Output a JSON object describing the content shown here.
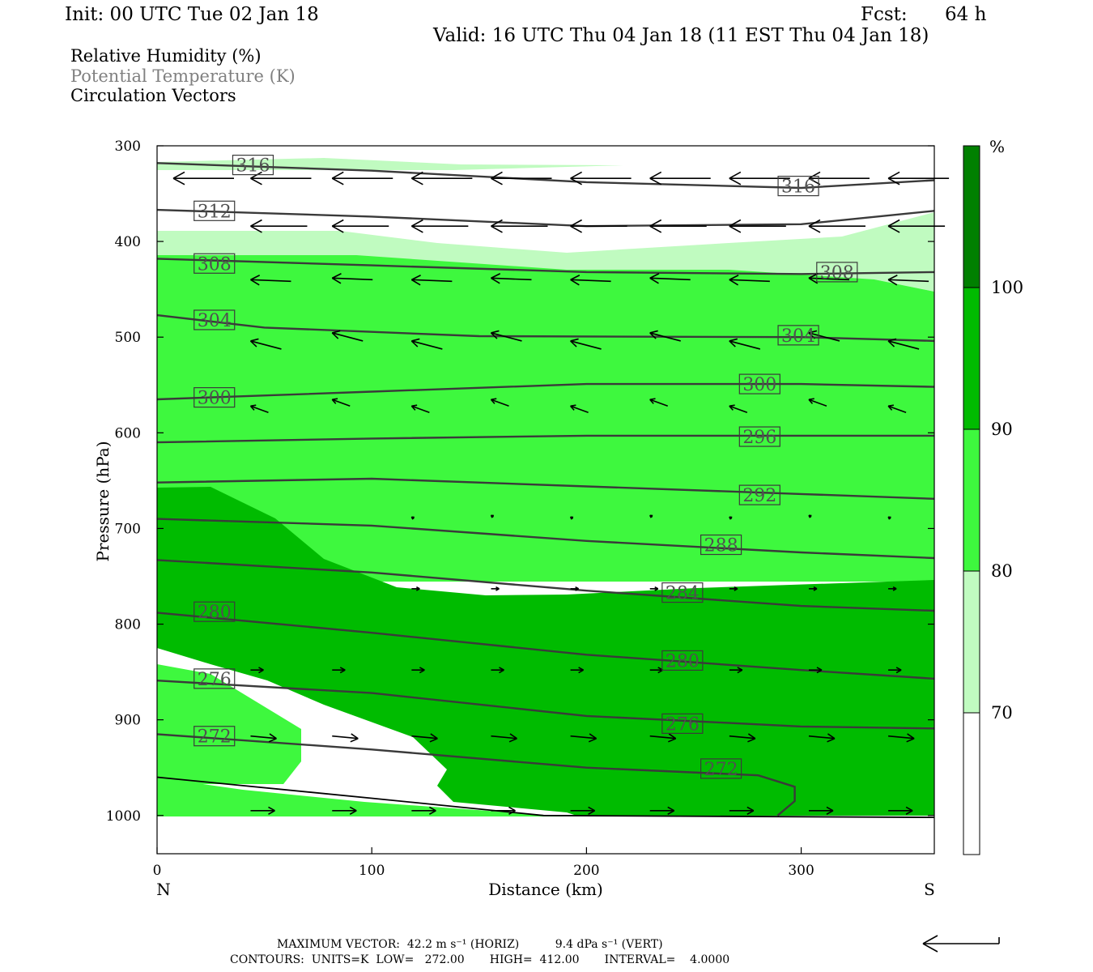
{
  "header": {
    "init": "Init: 00 UTC Tue 02 Jan 18",
    "fcst_label": "Fcst:",
    "fcst_value": "64 h",
    "valid": "Valid: 16 UTC Thu 04 Jan 18 (11 EST Thu 04 Jan 18)"
  },
  "legend_lines": {
    "rh": "Relative Humidity (%)",
    "theta": "Potential Temperature (K)",
    "vectors": "Circulation Vectors"
  },
  "colors": {
    "rh_70_80": "#c0fbc0",
    "rh_80_90": "#3ef83e",
    "rh_90_100": "#00bb00",
    "rh_100": "#008000",
    "contour": "#3a3a3a",
    "theta_text": "#808080"
  },
  "colorbar": {
    "unit": "%",
    "labels": [
      "70",
      "80",
      "90",
      "100"
    ]
  },
  "footer": {
    "line1": "MAXIMUM VECTOR:  42.2 m s⁻¹ (HORIZ)          9.4 dPa s⁻¹ (VERT)",
    "line2": "CONTOURS:  UNITS=K  LOW=   272.00       HIGH=  412.00       INTERVAL=    4.0000"
  },
  "chart_data": {
    "type": "cross-section",
    "xlabel": "Distance (km)",
    "ylabel": "Pressure (hPa)",
    "x_ticks": [
      0,
      100,
      200,
      300
    ],
    "y_ticks": [
      300,
      400,
      500,
      600,
      700,
      800,
      900,
      1000
    ],
    "xlim": [
      0,
      362
    ],
    "ylim": [
      300,
      1040
    ],
    "x_end_labels": {
      "left": "N",
      "right": "S"
    },
    "rh_fill_levels": [
      70,
      80,
      90,
      100
    ],
    "theta_contours": [
      {
        "label": "316",
        "points": [
          [
            0,
            318
          ],
          [
            100,
            326
          ],
          [
            200,
            338
          ],
          [
            300,
            344
          ],
          [
            362,
            336
          ]
        ],
        "label_at": [
          [
            36,
            320
          ],
          [
            290,
            342
          ]
        ]
      },
      {
        "label": "312",
        "points": [
          [
            0,
            367
          ],
          [
            100,
            374
          ],
          [
            200,
            384
          ],
          [
            300,
            382
          ],
          [
            362,
            368
          ]
        ],
        "label_at": [
          [
            18,
            368
          ]
        ]
      },
      {
        "label": "308",
        "points": [
          [
            0,
            418
          ],
          [
            100,
            425
          ],
          [
            200,
            432
          ],
          [
            300,
            434
          ],
          [
            362,
            432
          ]
        ],
        "label_at": [
          [
            18,
            423
          ],
          [
            308,
            432
          ]
        ]
      },
      {
        "label": "304",
        "points": [
          [
            0,
            477
          ],
          [
            50,
            490
          ],
          [
            150,
            499
          ],
          [
            300,
            500
          ],
          [
            362,
            504
          ]
        ],
        "label_at": [
          [
            18,
            482
          ],
          [
            290,
            498
          ]
        ]
      },
      {
        "label": "300",
        "points": [
          [
            0,
            565
          ],
          [
            100,
            557
          ],
          [
            200,
            549
          ],
          [
            300,
            549
          ],
          [
            362,
            552
          ]
        ],
        "label_at": [
          [
            18,
            563
          ],
          [
            272,
            549
          ]
        ]
      },
      {
        "label": "296",
        "points": [
          [
            0,
            610
          ],
          [
            100,
            606
          ],
          [
            200,
            603
          ],
          [
            300,
            603
          ],
          [
            362,
            603
          ]
        ],
        "label_at": [
          [
            272,
            604
          ]
        ]
      },
      {
        "label": "292",
        "points": [
          [
            0,
            652
          ],
          [
            100,
            648
          ],
          [
            200,
            656
          ],
          [
            300,
            664
          ],
          [
            362,
            669
          ]
        ],
        "label_at": [
          [
            272,
            665
          ]
        ]
      },
      {
        "label": "288",
        "points": [
          [
            0,
            690
          ],
          [
            100,
            697
          ],
          [
            200,
            713
          ],
          [
            300,
            725
          ],
          [
            362,
            731
          ]
        ],
        "label_at": [
          [
            254,
            717
          ]
        ]
      },
      {
        "label": "284",
        "points": [
          [
            0,
            733
          ],
          [
            100,
            746
          ],
          [
            200,
            765
          ],
          [
            300,
            781
          ],
          [
            362,
            786
          ]
        ],
        "label_at": [
          [
            236,
            767
          ]
        ]
      },
      {
        "label": "280",
        "points": [
          [
            0,
            788
          ],
          [
            100,
            809
          ],
          [
            200,
            832
          ],
          [
            300,
            848
          ],
          [
            362,
            857
          ]
        ],
        "label_at": [
          [
            18,
            787
          ],
          [
            236,
            838
          ]
        ]
      },
      {
        "label": "276",
        "points": [
          [
            0,
            859
          ],
          [
            100,
            872
          ],
          [
            200,
            896
          ],
          [
            300,
            907
          ],
          [
            362,
            909
          ]
        ],
        "label_at": [
          [
            18,
            857
          ],
          [
            236,
            904
          ]
        ]
      },
      {
        "label": "272",
        "points": [
          [
            0,
            915
          ],
          [
            100,
            931
          ],
          [
            200,
            950
          ],
          [
            280,
            958
          ],
          [
            297,
            970
          ],
          [
            297,
            985
          ],
          [
            289,
            1000
          ]
        ],
        "label_at": [
          [
            18,
            917
          ],
          [
            254,
            951
          ]
        ]
      }
    ],
    "surface_line": [
      [
        0,
        960
      ],
      [
        100,
        982
      ],
      [
        180,
        1000
      ],
      [
        362,
        1002
      ]
    ],
    "maximum_vector": {
      "horiz_m_s": 42.2,
      "vert_dPa_s": 9.4
    },
    "contour_stats": {
      "units": "K",
      "low": 272.0,
      "high": 412.0,
      "interval": 4.0
    }
  }
}
